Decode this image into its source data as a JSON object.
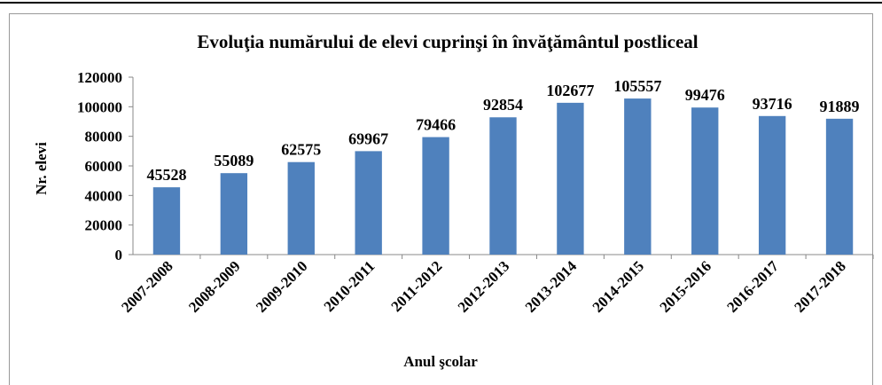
{
  "chart_data": {
    "type": "bar",
    "title": "Evoluţia numărului de elevi cuprinşi în învăţământul postliceal",
    "x_label": "Anul şcolar",
    "y_label": "Nr. elevi",
    "categories": [
      "2007-2008",
      "2008-2009",
      "2009-2010",
      "2010-2011",
      "2011-2012",
      "2012-2013",
      "2013-2014",
      "2014-2015",
      "2015-2016",
      "2016-2017",
      "2017-2018"
    ],
    "values": [
      45528,
      55089,
      62575,
      69967,
      79466,
      92854,
      102677,
      105557,
      99476,
      93716,
      91889
    ],
    "color": "#4f81bd",
    "ylim": [
      0,
      120000
    ],
    "yticks": [
      0,
      20000,
      40000,
      60000,
      80000,
      100000,
      120000
    ],
    "grid": false
  }
}
